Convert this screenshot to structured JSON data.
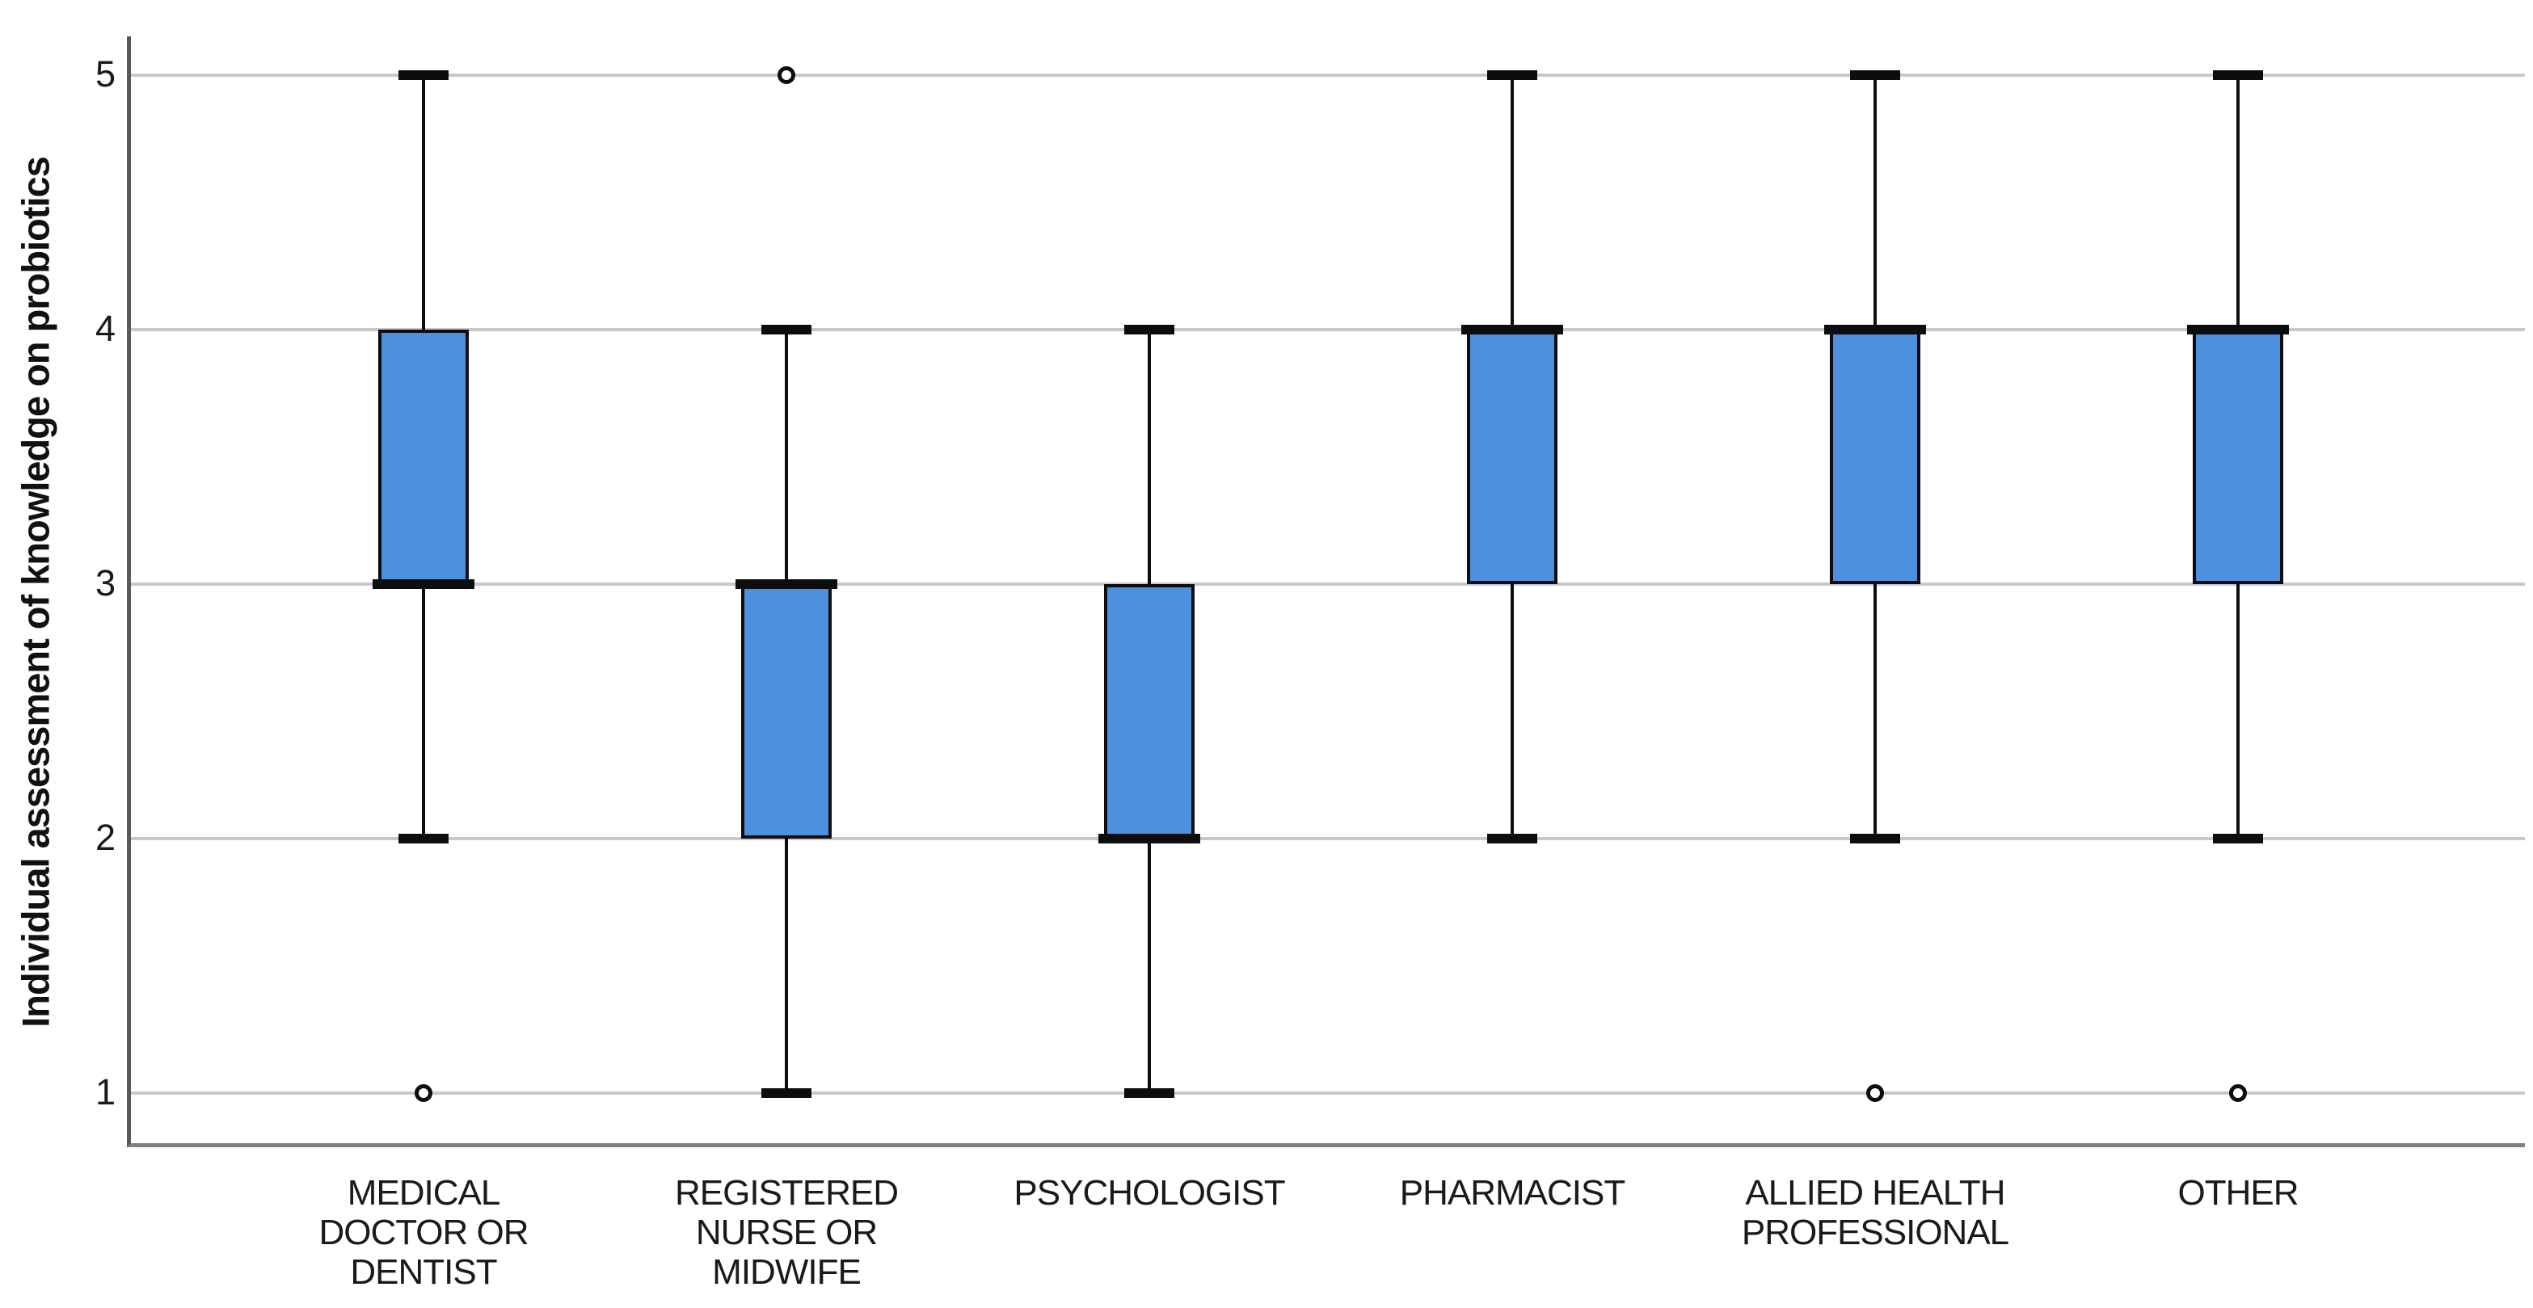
{
  "chart_data": {
    "type": "boxplot",
    "title": "",
    "xlabel": "",
    "ylabel": "Individual assessment of knowledge on probiotics",
    "y_ticks": [
      1,
      2,
      3,
      4,
      5
    ],
    "ylim": [
      1,
      5
    ],
    "grid": "horizontal gridlines at each integer tick",
    "legend_position": "none",
    "categories": [
      "MEDICAL DOCTOR OR DENTIST",
      "REGISTERED NURSE OR MIDWIFE",
      "PSYCHOLOGIST",
      "PHARMACIST",
      "ALLIED HEALTH PROFESSIONAL",
      "OTHER"
    ],
    "series": [
      {
        "category": "MEDICAL DOCTOR OR DENTIST",
        "label_lines": [
          "MEDICAL",
          "DOCTOR OR",
          "DENTIST"
        ],
        "whisker_low": 2,
        "q1": 3,
        "median": 3,
        "q3": 4,
        "whisker_high": 5,
        "outliers": [
          1
        ]
      },
      {
        "category": "REGISTERED NURSE OR MIDWIFE",
        "label_lines": [
          "REGISTERED",
          "NURSE OR",
          "MIDWIFE"
        ],
        "whisker_low": 1,
        "q1": 2,
        "median": 3,
        "q3": 3,
        "whisker_high": 4,
        "outliers": [
          5
        ]
      },
      {
        "category": "PSYCHOLOGIST",
        "label_lines": [
          "PSYCHOLOGIST"
        ],
        "whisker_low": 1,
        "q1": 2,
        "median": 2,
        "q3": 3,
        "whisker_high": 4,
        "outliers": []
      },
      {
        "category": "PHARMACIST",
        "label_lines": [
          "PHARMACIST"
        ],
        "whisker_low": 2,
        "q1": 3,
        "median": 4,
        "q3": 4,
        "whisker_high": 5,
        "outliers": []
      },
      {
        "category": "ALLIED HEALTH PROFESSIONAL",
        "label_lines": [
          "ALLIED HEALTH",
          "PROFESSIONAL"
        ],
        "whisker_low": 2,
        "q1": 3,
        "median": 4,
        "q3": 4,
        "whisker_high": 5,
        "outliers": [
          1
        ]
      },
      {
        "category": "OTHER",
        "label_lines": [
          "OTHER"
        ],
        "whisker_low": 2,
        "q1": 3,
        "median": 4,
        "q3": 4,
        "whisker_high": 5,
        "outliers": [
          1
        ]
      }
    ],
    "colors": {
      "box_fill": "#4D90E0",
      "box_border": "#0d0d0d",
      "median": "#0d0d0d",
      "whisker": "#0d0d0d",
      "gridline": "#c8c8c8",
      "y_axis_line": "#595959",
      "x_axis_line": "#808080",
      "text": "#1a1a1a"
    }
  }
}
